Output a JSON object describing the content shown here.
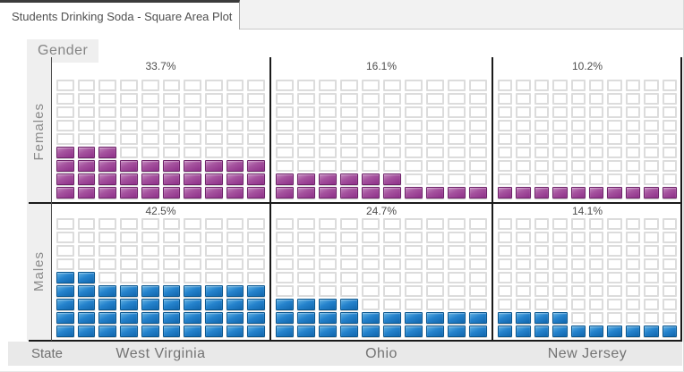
{
  "tab": {
    "title": "Students Drinking Soda - Square Area Plot"
  },
  "facet": {
    "row_header": "Gender",
    "col_header": "State"
  },
  "chart_data": {
    "type": "waffle",
    "title": "Students Drinking Soda - Square Area Plot",
    "description": "Faceted square area plot: 2 gender rows x 3 state columns; each panel is a 10-column x 9-row grid of squares, 1 square = 1 percentage point, filled bottom-up left-to-right",
    "row_facets": [
      "Females",
      "Males"
    ],
    "col_facets": [
      "West Virginia",
      "Ohio",
      "New Jersey"
    ],
    "grid": {
      "rows": 9,
      "cols": 10,
      "percent_per_square": 1
    },
    "panels": [
      {
        "row": "Females",
        "col": "West Virginia",
        "value": 33.7,
        "label": "33.7%",
        "filled": 33
      },
      {
        "row": "Females",
        "col": "Ohio",
        "value": 16.1,
        "label": "16.1%",
        "filled": 16
      },
      {
        "row": "Females",
        "col": "New Jersey",
        "value": 10.2,
        "label": "10.2%",
        "filled": 10
      },
      {
        "row": "Males",
        "col": "West Virginia",
        "value": 42.5,
        "label": "42.5%",
        "filled": 42
      },
      {
        "row": "Males",
        "col": "Ohio",
        "value": 24.7,
        "label": "24.7%",
        "filled": 24
      },
      {
        "row": "Males",
        "col": "New Jersey",
        "value": 14.1,
        "label": "14.1%",
        "filled": 14
      }
    ],
    "legend_position": "none"
  },
  "colors": {
    "female_fill": "#a6549f",
    "female_border": "#6e2369",
    "male_fill": "#2583cd",
    "male_border": "#0b578f",
    "empty_cell_border": "#dcdcdc",
    "axis_line": "#1a1a1a",
    "facet_label_bg": "#efefef",
    "state_strip_bg": "#e9e9e9",
    "label_text": "#7d7d7d",
    "tab_top_border": "#3b3b3b"
  }
}
